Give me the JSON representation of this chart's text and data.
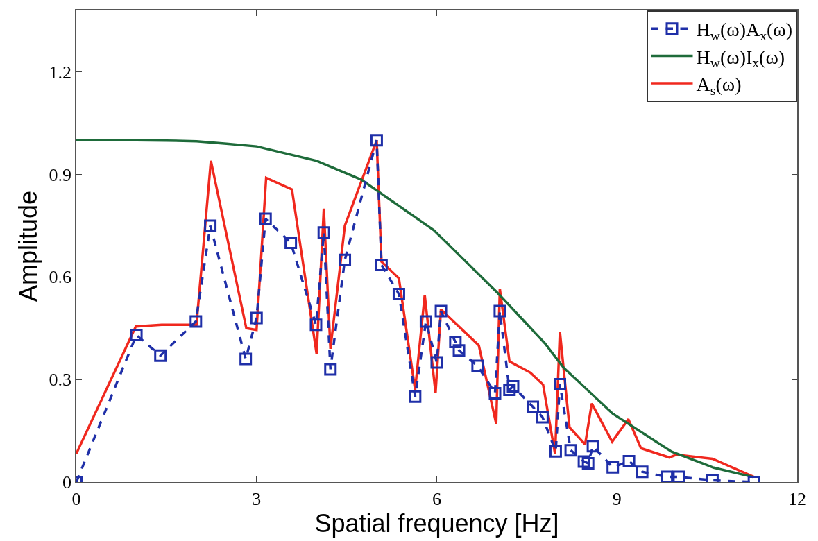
{
  "chart_data": {
    "type": "line",
    "xlabel": "Spatial frequency [Hz]",
    "ylabel": "Amplitude",
    "xlim": [
      0,
      12
    ],
    "xticks": [
      0,
      3,
      6,
      9,
      12
    ],
    "ylim": [
      0,
      1.38
    ],
    "yticks": [
      0,
      0.3,
      0.6,
      0.9,
      1.2
    ],
    "legend": "top right",
    "series": [
      {
        "name": "H$_{w}$(ω)A$_{x}$(ω)",
        "color": "#1f2fa8",
        "marker": "square",
        "line_style": "dashed",
        "x": [
          0,
          1.0,
          1.4,
          1.99,
          2.23,
          2.82,
          3.0,
          3.15,
          3.57,
          3.99,
          4.12,
          4.23,
          4.47,
          5.0,
          5.08,
          5.37,
          5.64,
          5.82,
          6.0,
          6.07,
          6.31,
          6.37,
          6.68,
          6.97,
          7.05,
          7.21,
          7.27,
          7.6,
          7.76,
          7.98,
          8.05,
          8.23,
          8.45,
          8.52,
          8.6,
          8.93,
          9.2,
          9.42,
          9.83,
          10.03,
          10.59,
          11.28
        ],
        "values": [
          0,
          0.43,
          0.37,
          0.47,
          0.75,
          0.36,
          0.48,
          0.77,
          0.7,
          0.46,
          0.73,
          0.33,
          0.65,
          1.0,
          0.635,
          0.55,
          0.25,
          0.47,
          0.35,
          0.5,
          0.41,
          0.385,
          0.34,
          0.26,
          0.5,
          0.27,
          0.28,
          0.22,
          0.19,
          0.09,
          0.286,
          0.093,
          0.06,
          0.055,
          0.105,
          0.043,
          0.061,
          0.03,
          0.015,
          0.015,
          0.005,
          0
        ]
      },
      {
        "name": "H$_{w}$(ω)I$_{x}$(ω)",
        "color": "#1e6b3a",
        "marker": "none",
        "line_style": "solid",
        "x": [
          0,
          1,
          1.5,
          2,
          2.5,
          3,
          4,
          4.74,
          5.95,
          7.01,
          7.8,
          8.11,
          8.93,
          9.91,
          10.61,
          11.26
        ],
        "values": [
          1.0,
          1.0,
          0.999,
          0.997,
          0.99,
          0.982,
          0.94,
          0.885,
          0.737,
          0.554,
          0.406,
          0.335,
          0.2,
          0.089,
          0.042,
          0.015
        ]
      },
      {
        "name": "A$_{s}$(ω)",
        "color": "#f0281e",
        "marker": "none",
        "line_style": "solid",
        "x": [
          0,
          0.99,
          1.42,
          2.0,
          2.24,
          2.83,
          3.0,
          3.16,
          3.59,
          4.0,
          4.12,
          4.23,
          4.47,
          5.0,
          5.08,
          5.37,
          5.64,
          5.8,
          5.98,
          6.07,
          6.7,
          6.99,
          7.05,
          7.21,
          7.56,
          7.77,
          7.97,
          8.05,
          8.21,
          8.47,
          8.58,
          8.92,
          9.19,
          9.4,
          9.87,
          9.99,
          10.59,
          11.28
        ],
        "values": [
          0.083,
          0.455,
          0.46,
          0.46,
          0.94,
          0.45,
          0.445,
          0.89,
          0.856,
          0.375,
          0.8,
          0.39,
          0.75,
          1.0,
          0.645,
          0.596,
          0.27,
          0.547,
          0.26,
          0.505,
          0.4,
          0.17,
          0.565,
          0.353,
          0.32,
          0.285,
          0.082,
          0.44,
          0.16,
          0.11,
          0.23,
          0.118,
          0.184,
          0.099,
          0.072,
          0.08,
          0.068,
          0.015
        ]
      }
    ]
  }
}
